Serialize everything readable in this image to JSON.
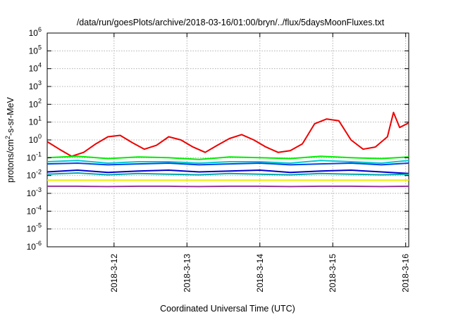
{
  "chart_data": {
    "type": "line",
    "title": "/data/run/goesPlots/archive/2018-03-16/01:00/bryn/../flux/5daysMoonFluxes.txt",
    "xlabel": "Coordinated Universal Time (UTC)",
    "ylabel": "protons/cm²-s-sr-MeV",
    "ylabel_parts": {
      "base": "protons/cm",
      "sup": "2",
      "rest": "-s-sr-MeV"
    },
    "y_scale": "log",
    "ylim": [
      1e-06,
      1000000.0
    ],
    "y_ticks": [
      {
        "value": 1e-06,
        "base": "10",
        "exp": "-6"
      },
      {
        "value": 1e-05,
        "base": "10",
        "exp": "-5"
      },
      {
        "value": 0.0001,
        "base": "10",
        "exp": "-4"
      },
      {
        "value": 0.001,
        "base": "10",
        "exp": "-3"
      },
      {
        "value": 0.01,
        "base": "10",
        "exp": "-2"
      },
      {
        "value": 0.1,
        "base": "10",
        "exp": "-1"
      },
      {
        "value": 1,
        "base": "10",
        "exp": "0"
      },
      {
        "value": 10,
        "base": "10",
        "exp": "1"
      },
      {
        "value": 100,
        "base": "10",
        "exp": "2"
      },
      {
        "value": 1000,
        "base": "10",
        "exp": "3"
      },
      {
        "value": 10000,
        "base": "10",
        "exp": "4"
      },
      {
        "value": 100000,
        "base": "10",
        "exp": "5"
      },
      {
        "value": 1000000,
        "base": "10",
        "exp": "6"
      }
    ],
    "xlim": [
      "2018-03-11 02:00",
      "2018-03-16 01:00"
    ],
    "x_ticks": [
      "2018-3-12",
      "2018-3-13",
      "2018-3-14",
      "2018-3-15",
      "2018-3-16"
    ],
    "x_tick_dates": [
      "2018-03-12 00:00",
      "2018-03-13 00:00",
      "2018-03-14 00:00",
      "2018-03-15 00:00",
      "2018-03-16 00:00"
    ],
    "grid": true,
    "legend": "none",
    "series": [
      {
        "color": "#ee0000",
        "x": [
          "2018-03-11 02:00",
          "2018-03-11 06:00",
          "2018-03-11 10:00",
          "2018-03-11 14:00",
          "2018-03-11 18:00",
          "2018-03-11 22:00",
          "2018-03-12 02:00",
          "2018-03-12 06:00",
          "2018-03-12 10:00",
          "2018-03-12 14:00",
          "2018-03-12 18:00",
          "2018-03-12 22:00",
          "2018-03-13 02:00",
          "2018-03-13 06:00",
          "2018-03-13 10:00",
          "2018-03-13 14:00",
          "2018-03-13 18:00",
          "2018-03-13 22:00",
          "2018-03-14 02:00",
          "2018-03-14 06:00",
          "2018-03-14 10:00",
          "2018-03-14 14:00",
          "2018-03-14 18:00",
          "2018-03-14 22:00",
          "2018-03-15 02:00",
          "2018-03-15 06:00",
          "2018-03-15 10:00",
          "2018-03-15 14:00",
          "2018-03-15 18:00",
          "2018-03-15 20:00",
          "2018-03-15 22:00",
          "2018-03-16 01:00"
        ],
        "y": [
          0.8,
          0.3,
          0.12,
          0.2,
          0.6,
          1.5,
          1.8,
          0.7,
          0.3,
          0.5,
          1.5,
          1.0,
          0.4,
          0.2,
          0.5,
          1.2,
          2.0,
          1.0,
          0.4,
          0.2,
          0.25,
          0.6,
          8.0,
          15,
          12,
          1.0,
          0.3,
          0.4,
          1.5,
          35,
          5.0,
          9.0
        ]
      },
      {
        "color": "#00ee00",
        "x": [
          "2018-03-11 02:00",
          "2018-03-11 12:00",
          "2018-03-11 22:00",
          "2018-03-12 08:00",
          "2018-03-12 18:00",
          "2018-03-13 04:00",
          "2018-03-13 14:00",
          "2018-03-14 00:00",
          "2018-03-14 10:00",
          "2018-03-14 20:00",
          "2018-03-15 06:00",
          "2018-03-15 16:00",
          "2018-03-16 01:00"
        ],
        "y": [
          0.1,
          0.12,
          0.09,
          0.11,
          0.1,
          0.08,
          0.11,
          0.1,
          0.09,
          0.12,
          0.1,
          0.09,
          0.11
        ]
      },
      {
        "color": "#00cccc",
        "x": [
          "2018-03-11 02:00",
          "2018-03-11 12:00",
          "2018-03-11 22:00",
          "2018-03-12 08:00",
          "2018-03-12 18:00",
          "2018-03-13 04:00",
          "2018-03-13 14:00",
          "2018-03-14 00:00",
          "2018-03-14 10:00",
          "2018-03-14 20:00",
          "2018-03-15 06:00",
          "2018-03-15 16:00",
          "2018-03-16 01:00"
        ],
        "y": [
          0.06,
          0.07,
          0.05,
          0.06,
          0.06,
          0.05,
          0.06,
          0.06,
          0.05,
          0.07,
          0.06,
          0.05,
          0.07
        ]
      },
      {
        "color": "#0044ee",
        "x": [
          "2018-03-11 02:00",
          "2018-03-11 12:00",
          "2018-03-11 22:00",
          "2018-03-12 08:00",
          "2018-03-12 18:00",
          "2018-03-13 04:00",
          "2018-03-13 14:00",
          "2018-03-14 00:00",
          "2018-03-14 10:00",
          "2018-03-14 20:00",
          "2018-03-15 06:00",
          "2018-03-15 16:00",
          "2018-03-16 01:00"
        ],
        "y": [
          0.045,
          0.05,
          0.04,
          0.045,
          0.05,
          0.04,
          0.045,
          0.05,
          0.04,
          0.045,
          0.05,
          0.04,
          0.05
        ]
      },
      {
        "color": "#0000cc",
        "x": [
          "2018-03-11 02:00",
          "2018-03-11 12:00",
          "2018-03-11 22:00",
          "2018-03-12 08:00",
          "2018-03-12 18:00",
          "2018-03-13 04:00",
          "2018-03-13 14:00",
          "2018-03-14 00:00",
          "2018-03-14 10:00",
          "2018-03-14 20:00",
          "2018-03-15 06:00",
          "2018-03-15 16:00",
          "2018-03-16 01:00"
        ],
        "y": [
          0.016,
          0.02,
          0.015,
          0.018,
          0.02,
          0.016,
          0.018,
          0.02,
          0.015,
          0.018,
          0.02,
          0.016,
          0.013
        ]
      },
      {
        "color": "#00aaaa",
        "x": [
          "2018-03-11 02:00",
          "2018-03-11 12:00",
          "2018-03-11 22:00",
          "2018-03-12 08:00",
          "2018-03-12 18:00",
          "2018-03-13 04:00",
          "2018-03-13 14:00",
          "2018-03-14 00:00",
          "2018-03-14 10:00",
          "2018-03-14 20:00",
          "2018-03-15 06:00",
          "2018-03-15 16:00",
          "2018-03-16 01:00"
        ],
        "y": [
          0.012,
          0.014,
          0.011,
          0.013,
          0.012,
          0.011,
          0.013,
          0.012,
          0.011,
          0.013,
          0.012,
          0.011,
          0.012
        ]
      },
      {
        "color": "#eeee00",
        "x": [
          "2018-03-11 02:00",
          "2018-03-11 12:00",
          "2018-03-11 22:00",
          "2018-03-12 08:00",
          "2018-03-12 18:00",
          "2018-03-13 04:00",
          "2018-03-13 14:00",
          "2018-03-14 00:00",
          "2018-03-14 10:00",
          "2018-03-14 20:00",
          "2018-03-15 06:00",
          "2018-03-15 16:00",
          "2018-03-16 01:00"
        ],
        "y": [
          0.0055,
          0.0055,
          0.0055,
          0.0055,
          0.0055,
          0.0055,
          0.0055,
          0.0055,
          0.0055,
          0.0055,
          0.0055,
          0.0055,
          0.0055
        ]
      },
      {
        "color": "#993399",
        "x": [
          "2018-03-11 02:00",
          "2018-03-11 12:00",
          "2018-03-11 22:00",
          "2018-03-12 08:00",
          "2018-03-12 18:00",
          "2018-03-13 04:00",
          "2018-03-13 14:00",
          "2018-03-14 00:00",
          "2018-03-14 10:00",
          "2018-03-14 20:00",
          "2018-03-15 06:00",
          "2018-03-15 16:00",
          "2018-03-16 01:00"
        ],
        "y": [
          0.0025,
          0.0025,
          0.0024,
          0.0025,
          0.0025,
          0.0024,
          0.0025,
          0.0025,
          0.0024,
          0.0025,
          0.0025,
          0.0024,
          0.0025
        ]
      }
    ]
  }
}
